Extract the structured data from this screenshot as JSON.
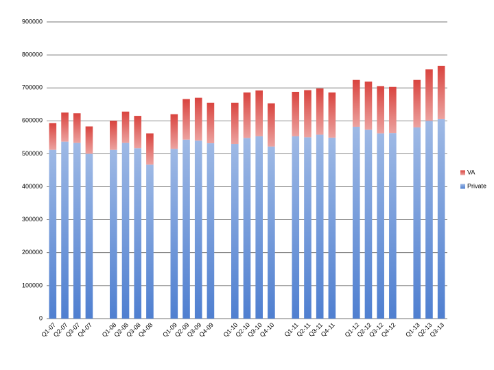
{
  "chart_data": {
    "type": "stacked-bar",
    "categories": [
      "Q1-07",
      "Q2-07",
      "Q3-07",
      "Q4-07",
      null,
      "Q1-08",
      "Q2-08",
      "Q3-08",
      "Q4-08",
      null,
      "Q1-09",
      "Q2-09",
      "Q3-09",
      "Q4-09",
      null,
      "Q1-10",
      "Q2-10",
      "Q3-10",
      "Q4-10",
      null,
      "Q1-11",
      "Q2-11",
      "Q3-11",
      "Q4-11",
      null,
      "Q1-12",
      "Q2-12",
      "Q3-12",
      "Q4-12",
      null,
      "Q1-13",
      "Q2-13",
      "Q3-13"
    ],
    "series": [
      {
        "name": "Private",
        "color": "#4f7fd0",
        "values": [
          512000,
          537000,
          533000,
          500000,
          null,
          512000,
          533000,
          517000,
          467000,
          null,
          515000,
          543000,
          540000,
          532000,
          null,
          530000,
          548000,
          553000,
          522000,
          null,
          553000,
          550000,
          558000,
          549000,
          null,
          582000,
          573000,
          562000,
          563000,
          null,
          580000,
          600000,
          605000
        ]
      },
      {
        "name": "VA",
        "color": "#d9443f",
        "values": [
          81000,
          88000,
          90000,
          83000,
          null,
          88000,
          95000,
          98000,
          95000,
          null,
          105000,
          123000,
          130000,
          123000,
          null,
          125000,
          138000,
          139000,
          131000,
          null,
          135000,
          143000,
          140000,
          137000,
          null,
          142000,
          146000,
          143000,
          140000,
          null,
          144000,
          156000,
          162000
        ]
      }
    ],
    "ylim": [
      0,
      900000
    ],
    "yticks": [
      0,
      100000,
      200000,
      300000,
      400000,
      500000,
      600000,
      700000,
      800000,
      900000
    ],
    "grid": true,
    "legend": "right"
  }
}
